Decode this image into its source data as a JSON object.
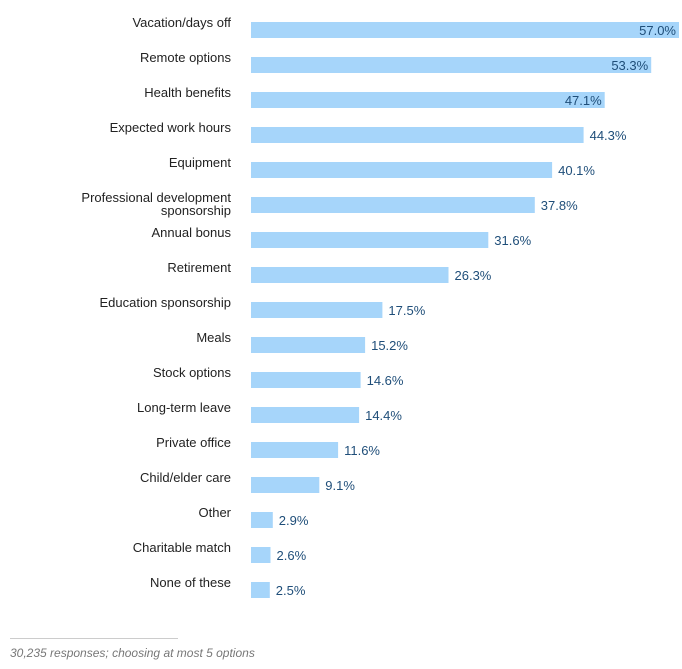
{
  "chart_data": {
    "type": "bar",
    "orientation": "horizontal",
    "title": "",
    "xlabel": "",
    "ylabel": "",
    "xlim": [
      0,
      57.0
    ],
    "grid": false,
    "bar_color": "#a6d5fa",
    "label_color": "#1f4e79",
    "categories": [
      [
        "Vacation/days off"
      ],
      [
        "Remote options"
      ],
      [
        "Health benefits"
      ],
      [
        "Expected work hours"
      ],
      [
        "Equipment"
      ],
      [
        "Professional development",
        "sponsorship"
      ],
      [
        "Annual bonus"
      ],
      [
        "Retirement"
      ],
      [
        "Education sponsorship"
      ],
      [
        "Meals"
      ],
      [
        "Stock options"
      ],
      [
        "Long-term leave"
      ],
      [
        "Private office"
      ],
      [
        "Child/elder care"
      ],
      [
        "Other"
      ],
      [
        "Charitable match"
      ],
      [
        "None of these"
      ]
    ],
    "values": [
      57.0,
      53.3,
      47.1,
      44.3,
      40.1,
      37.8,
      31.6,
      26.3,
      17.5,
      15.2,
      14.6,
      14.4,
      11.6,
      9.1,
      2.9,
      2.6,
      2.5
    ],
    "value_labels": [
      "57.0%",
      "53.3%",
      "47.1%",
      "44.3%",
      "40.1%",
      "37.8%",
      "31.6%",
      "26.3%",
      "17.5%",
      "15.2%",
      "14.6%",
      "14.4%",
      "11.6%",
      "9.1%",
      "2.9%",
      "2.6%",
      "2.5%"
    ]
  },
  "footnote": "30,235 responses; choosing at most 5 options"
}
